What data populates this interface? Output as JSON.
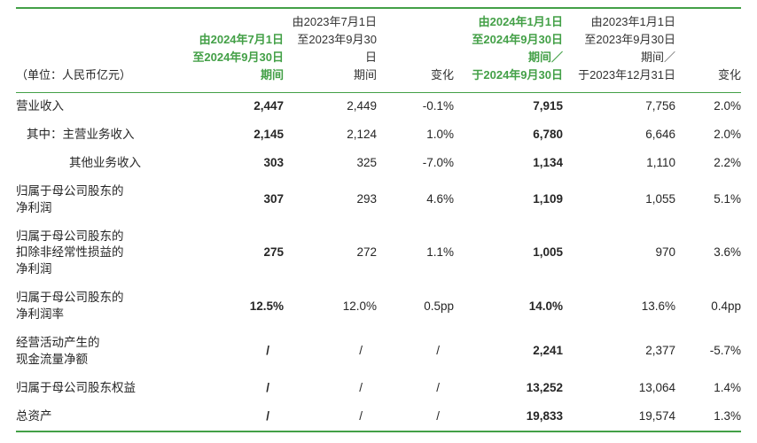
{
  "colors": {
    "accent_green": "#43a047",
    "text": "#262626"
  },
  "chart_data": {
    "type": "table",
    "unit_label": "（单位：人民币亿元）",
    "columns": [
      {
        "label": "由2024年7月1日\n至2024年9月30日\n期间",
        "highlight": true
      },
      {
        "label": "由2023年7月1日\n至2023年9月30日\n期间",
        "highlight": false
      },
      {
        "label": "变化",
        "highlight": false
      },
      {
        "label": "由2024年1月1日\n至2024年9月30日\n期间／\n于2024年9月30日",
        "highlight": true
      },
      {
        "label": "由2023年1月1日\n至2023年9月30日\n期间／\n于2023年12月31日",
        "highlight": false
      },
      {
        "label": "变化",
        "highlight": false
      }
    ],
    "rows": [
      {
        "label": "营业收入",
        "indent": 0,
        "values": [
          "2,447",
          "2,449",
          "-0.1%",
          "7,915",
          "7,756",
          "2.0%"
        ]
      },
      {
        "label": "其中：主营业务收入",
        "indent": 1,
        "values": [
          "2,145",
          "2,124",
          "1.0%",
          "6,780",
          "6,646",
          "2.0%"
        ]
      },
      {
        "label": "其他业务收入",
        "indent": 2,
        "values": [
          "303",
          "325",
          "-7.0%",
          "1,134",
          "1,110",
          "2.2%"
        ]
      },
      {
        "label": "归属于母公司股东的\n净利润",
        "indent": 0,
        "values": [
          "307",
          "293",
          "4.6%",
          "1,109",
          "1,055",
          "5.1%"
        ]
      },
      {
        "label": "归属于母公司股东的\n扣除非经常性损益的\n净利润",
        "indent": 0,
        "values": [
          "275",
          "272",
          "1.1%",
          "1,005",
          "970",
          "3.6%"
        ]
      },
      {
        "label": "归属于母公司股东的\n净利润率",
        "indent": 0,
        "values": [
          "12.5%",
          "12.0%",
          "0.5pp",
          "14.0%",
          "13.6%",
          "0.4pp"
        ]
      },
      {
        "label": "经营活动产生的\n现金流量净额",
        "indent": 0,
        "values": [
          "/",
          "/",
          "/",
          "2,241",
          "2,377",
          "-5.7%"
        ]
      },
      {
        "label": "归属于母公司股东权益",
        "indent": 0,
        "values": [
          "/",
          "/",
          "/",
          "13,252",
          "13,064",
          "1.4%"
        ]
      },
      {
        "label": "总资产",
        "indent": 0,
        "values": [
          "/",
          "/",
          "/",
          "19,833",
          "19,574",
          "1.3%"
        ]
      }
    ]
  }
}
